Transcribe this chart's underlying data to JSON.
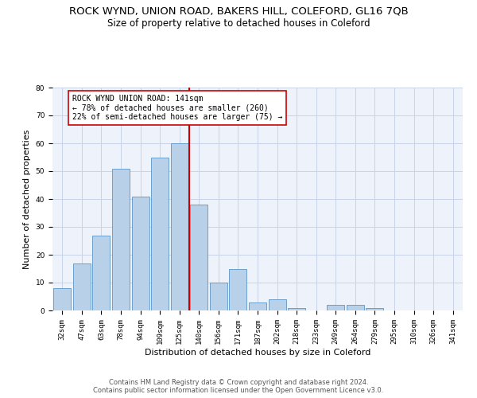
{
  "title": "ROCK WYND, UNION ROAD, BAKERS HILL, COLEFORD, GL16 7QB",
  "subtitle": "Size of property relative to detached houses in Coleford",
  "xlabel": "Distribution of detached houses by size in Coleford",
  "ylabel": "Number of detached properties",
  "categories": [
    "32sqm",
    "47sqm",
    "63sqm",
    "78sqm",
    "94sqm",
    "109sqm",
    "125sqm",
    "140sqm",
    "156sqm",
    "171sqm",
    "187sqm",
    "202sqm",
    "218sqm",
    "233sqm",
    "249sqm",
    "264sqm",
    "279sqm",
    "295sqm",
    "310sqm",
    "326sqm",
    "341sqm"
  ],
  "values": [
    8,
    17,
    27,
    51,
    41,
    55,
    60,
    38,
    10,
    15,
    3,
    4,
    1,
    0,
    2,
    2,
    1,
    0,
    0,
    0,
    0
  ],
  "bar_color": "#b8d0e8",
  "bar_edge_color": "#5a96c8",
  "highlight_line_color": "#cc0000",
  "annotation_text": "ROCK WYND UNION ROAD: 141sqm\n← 78% of detached houses are smaller (260)\n22% of semi-detached houses are larger (75) →",
  "annotation_box_color": "#cc0000",
  "ylim": [
    0,
    80
  ],
  "yticks": [
    0,
    10,
    20,
    30,
    40,
    50,
    60,
    70,
    80
  ],
  "grid_color": "#c8d4e8",
  "background_color": "#eef2fa",
  "footer_line1": "Contains HM Land Registry data © Crown copyright and database right 2024.",
  "footer_line2": "Contains public sector information licensed under the Open Government Licence v3.0.",
  "title_fontsize": 9.5,
  "subtitle_fontsize": 8.5,
  "xlabel_fontsize": 8,
  "ylabel_fontsize": 8,
  "tick_fontsize": 6.5,
  "annotation_fontsize": 7
}
